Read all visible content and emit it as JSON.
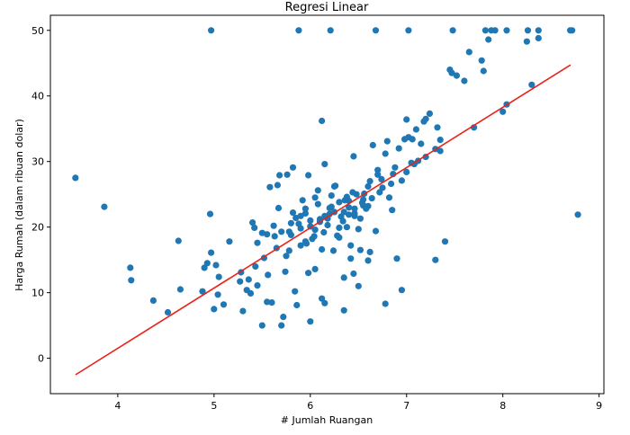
{
  "chart_data": {
    "type": "scatter",
    "title": "Regresi Linear",
    "xlabel": "# Jumlah Ruangan",
    "ylabel": "Harga Rumah (dalam ribuan dolar)",
    "xlim": [
      3.3,
      9.05
    ],
    "ylim": [
      -5.4,
      52.3
    ],
    "xticks": [
      4,
      5,
      6,
      7,
      8,
      9
    ],
    "yticks": [
      0,
      10,
      20,
      30,
      40,
      50
    ],
    "grid": false,
    "legend": "none",
    "colors": {
      "points": "#1f77b4",
      "line": "#e8231a",
      "axes": "#000000"
    },
    "series": [
      {
        "kind": "points",
        "x": [
          3.56,
          3.86,
          4.13,
          4.14,
          4.37,
          4.52,
          4.63,
          4.65,
          4.88,
          4.9,
          4.93,
          4.96,
          5.0,
          5.02,
          5.04,
          5.1,
          5.16,
          5.28,
          5.3,
          5.34,
          5.36,
          5.4,
          5.42,
          5.45,
          5.5,
          5.52,
          5.56,
          5.6,
          5.63,
          5.67,
          5.7,
          5.74,
          5.78,
          5.82,
          5.86,
          5.9,
          5.95,
          6.0,
          6.05,
          6.12,
          6.2,
          6.3,
          6.35,
          6.4,
          6.46,
          6.52,
          6.6,
          6.65,
          6.7,
          6.78,
          6.85,
          6.95,
          7.05,
          7.1,
          7.2,
          7.3,
          7.4,
          7.47,
          7.52,
          7.6,
          7.7,
          7.8,
          7.85,
          8.0,
          8.04,
          8.25,
          8.3,
          8.37,
          4.97,
          5.88,
          6.21,
          6.68,
          7.02,
          7.48,
          7.82,
          7.88,
          7.92,
          8.04,
          8.26,
          8.37,
          8.7,
          8.72,
          8.78,
          7.32,
          6.95,
          6.78,
          6.35,
          6.5,
          6.12,
          5.98,
          5.84,
          5.72,
          5.55,
          5.43,
          5.38,
          5.27,
          5.05,
          4.97,
          6.15,
          6.45,
          6.6,
          6.9,
          7.3,
          7.0,
          6.8,
          6.7,
          6.45,
          6.25,
          6.05,
          5.9,
          5.8,
          5.7,
          5.62,
          5.55,
          5.5,
          5.45,
          5.8,
          5.95,
          6.1,
          6.25,
          6.4,
          6.55,
          6.75,
          7.15,
          7.35,
          7.45,
          7.65,
          7.78,
          6.3,
          6.0,
          5.85,
          5.92,
          6.08,
          6.22,
          6.38,
          6.48,
          6.58,
          6.72,
          6.88,
          6.98,
          7.08,
          7.18,
          5.65,
          5.75,
          6.18,
          6.42,
          6.62,
          6.82,
          7.0,
          7.12,
          6.5,
          6.3,
          6.05,
          5.88,
          6.15,
          6.35,
          6.55,
          6.02,
          5.95,
          6.12,
          6.28,
          6.42,
          5.78,
          6.0,
          6.2,
          6.38,
          6.52,
          6.68,
          6.32,
          6.1,
          5.9,
          6.18,
          6.46,
          6.22,
          6.4,
          6.15,
          5.98,
          6.08,
          6.26,
          6.36,
          6.44,
          6.6,
          6.74,
          6.86,
          6.92,
          7.02,
          7.06,
          7.2,
          7.24,
          7.35,
          6.56,
          6.64,
          6.84,
          5.58,
          5.66,
          5.68,
          5.76,
          5.82,
          5.96,
          6.04,
          6.14,
          6.24,
          6.34,
          6.46,
          6.54,
          6.62
        ],
        "y": [
          27.5,
          23.1,
          13.8,
          11.9,
          8.8,
          7.0,
          17.9,
          10.5,
          10.2,
          13.8,
          14.5,
          22.0,
          7.5,
          14.2,
          9.7,
          8.2,
          17.8,
          13.1,
          7.2,
          10.4,
          12.0,
          20.7,
          19.9,
          11.1,
          5.0,
          15.3,
          12.7,
          8.5,
          18.6,
          22.9,
          5.0,
          13.2,
          16.4,
          22.2,
          8.1,
          17.2,
          22.8,
          5.6,
          13.6,
          36.2,
          22.9,
          23.8,
          12.3,
          21.9,
          21.7,
          16.5,
          23.2,
          32.5,
          28.0,
          31.2,
          22.6,
          27.1,
          29.8,
          34.9,
          30.7,
          15.0,
          17.8,
          43.5,
          43.1,
          42.3,
          35.2,
          43.8,
          48.6,
          37.6,
          38.7,
          48.3,
          41.7,
          48.8,
          50.0,
          50.0,
          50.0,
          50.0,
          50.0,
          50.0,
          50.0,
          50.0,
          50.0,
          50.0,
          50.0,
          50.0,
          50.0,
          50.0,
          21.9,
          35.2,
          10.4,
          8.3,
          7.3,
          11.0,
          9.1,
          13.0,
          10.2,
          6.3,
          8.6,
          14.0,
          9.9,
          11.7,
          12.4,
          16.1,
          8.4,
          12.9,
          14.9,
          15.2,
          31.9,
          36.4,
          33.1,
          28.7,
          30.8,
          26.2,
          24.5,
          19.8,
          18.8,
          19.3,
          20.2,
          18.9,
          19.1,
          17.6,
          20.6,
          22.1,
          21.2,
          22.3,
          23.0,
          24.2,
          26.0,
          32.7,
          33.3,
          44.0,
          46.7,
          45.4,
          19.9,
          20.1,
          21.4,
          24.1,
          23.5,
          24.8,
          24.6,
          25.0,
          22.8,
          25.3,
          29.1,
          33.4,
          29.6,
          36.1,
          16.8,
          15.6,
          20.3,
          15.2,
          16.2,
          24.5,
          28.4,
          30.1,
          19.7,
          18.4,
          19.6,
          20.5,
          21.7,
          22.3,
          23.3,
          18.2,
          17.8,
          16.6,
          18.7,
          17.2,
          19.3,
          21.0,
          22.0,
          20.0,
          21.3,
          19.4,
          21.6,
          20.8,
          21.7,
          21.3,
          22.8,
          23.1,
          24.0,
          29.6,
          27.9,
          25.6,
          26.3,
          24.1,
          25.3,
          26.2,
          27.3,
          28.1,
          32.0,
          33.7,
          33.4,
          36.5,
          37.3,
          31.6,
          25.1,
          24.4,
          26.6,
          26.1,
          26.4,
          27.9,
          28.0,
          29.1,
          17.5,
          18.6,
          19.2,
          16.4,
          20.9,
          22.1,
          23.7,
          27.0
        ]
      },
      {
        "kind": "regression_line",
        "x": [
          3.561,
          8.704
        ],
        "y": [
          -2.52,
          44.74
        ]
      }
    ]
  }
}
